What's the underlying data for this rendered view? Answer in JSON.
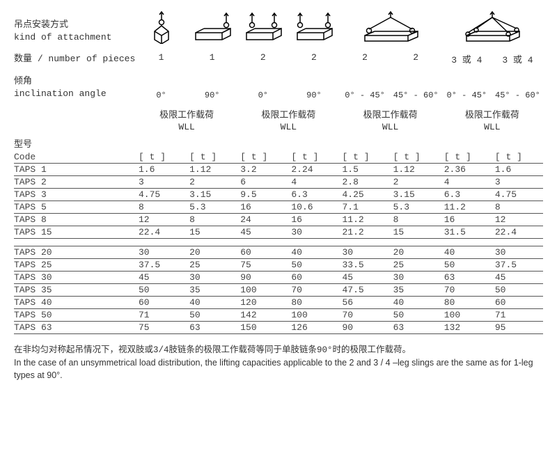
{
  "labels": {
    "attachment_cn": "吊点安装方式",
    "attachment_en": "kind of attachment",
    "pieces_cn": "数量",
    "pieces_en": "number of pieces",
    "angle_cn": "倾角",
    "angle_en": "inclination angle",
    "wll_cn": "极限工作载荷",
    "wll_en": "WLL",
    "type_cn": "型号",
    "code_en": "Code",
    "unit": "[ t ]"
  },
  "pieces": [
    "1",
    "1",
    "2",
    "2",
    "2",
    "2",
    "3 或 4",
    "3 或 4"
  ],
  "angles": [
    "0°",
    "90°",
    "0°",
    "90°",
    "0° - 45°",
    "45° - 60°",
    "0° - 45°",
    "45° - 60°"
  ],
  "table": {
    "columns": 8,
    "groups": [
      {
        "top": true,
        "rows": [
          {
            "code": "TAPS 1",
            "v": [
              "1.6",
              "1.12",
              "3.2",
              "2.24",
              "1.5",
              "1.12",
              "2.36",
              "1.6"
            ]
          },
          {
            "code": "TAPS 2",
            "v": [
              "3",
              "2",
              "6",
              "4",
              "2.8",
              "2",
              "4",
              "3"
            ]
          },
          {
            "code": "TAPS 3",
            "v": [
              "4.75",
              "3.15",
              "9.5",
              "6.3",
              "4.25",
              "3.15",
              "6.3",
              "4.75"
            ]
          },
          {
            "code": "TAPS 5",
            "v": [
              "8",
              "5.3",
              "16",
              "10.6",
              "7.1",
              "5.3",
              "11.2",
              "8"
            ]
          },
          {
            "code": "TAPS 8",
            "v": [
              "12",
              "8",
              "24",
              "16",
              "11.2",
              "8",
              "16",
              "12"
            ]
          },
          {
            "code": "TAPS 15",
            "v": [
              "22.4",
              "15",
              "45",
              "30",
              "21.2",
              "15",
              "31.5",
              "22.4"
            ]
          }
        ]
      },
      {
        "top": false,
        "rows": [
          {
            "code": "TAPS 20",
            "v": [
              "30",
              "20",
              "60",
              "40",
              "30",
              "20",
              "40",
              "30"
            ]
          },
          {
            "code": "TAPS 25",
            "v": [
              "37.5",
              "25",
              "75",
              "50",
              "33.5",
              "25",
              "50",
              "37.5"
            ]
          },
          {
            "code": "TAPS 30",
            "v": [
              "45",
              "30",
              "90",
              "60",
              "45",
              "30",
              "63",
              "45"
            ]
          },
          {
            "code": "TAPS 35",
            "v": [
              "50",
              "35",
              "100",
              "70",
              "47.5",
              "35",
              "70",
              "50"
            ]
          },
          {
            "code": "TAPS 40",
            "v": [
              "60",
              "40",
              "120",
              "80",
              "56",
              "40",
              "80",
              "60"
            ]
          },
          {
            "code": "TAPS 50",
            "v": [
              "71",
              "50",
              "142",
              "100",
              "70",
              "50",
              "100",
              "71"
            ]
          },
          {
            "code": "TAPS 63",
            "v": [
              "75",
              "63",
              "150",
              "126",
              "90",
              "63",
              "132",
              "95"
            ]
          }
        ]
      }
    ]
  },
  "footnote": {
    "cn": "在非均匀对称起吊情况下，视双肢或3/4肢链条的极限工作载荷等同于单肢链条90°时的极限工作载荷。",
    "en": "In the case of an unsymmetrical load distribution, the lifting capacities applicable to the 2 and 3 / 4 –leg slings are the same as for 1-leg types at 90°."
  },
  "style": {
    "stroke": "#000000",
    "border": "#555555",
    "text": "#333333",
    "fontsize_body": 13,
    "fontsize_foot": 12.5
  }
}
